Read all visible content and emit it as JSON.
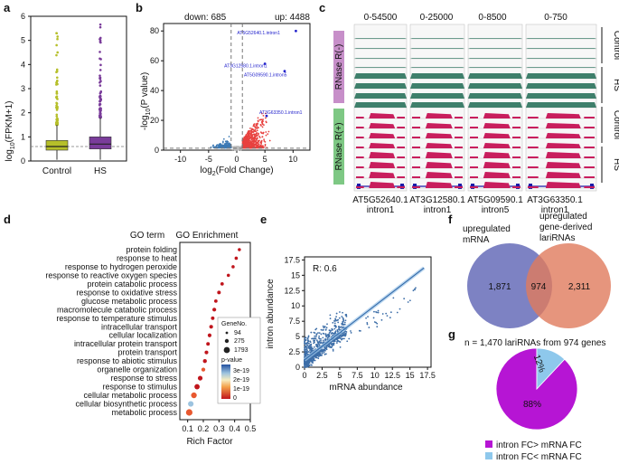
{
  "panels": {
    "a": {
      "label": "a",
      "ylabel_main": "log",
      "ylabel_sub": "10",
      "ylabel_rest": "(FPKM+1)",
      "yticks": [
        "0",
        "1",
        "2",
        "3",
        "4",
        "5",
        "6"
      ],
      "categories": [
        "Control",
        "HS"
      ]
    },
    "b": {
      "label": "b",
      "down_text": "down: 685",
      "up_text": "up: 4488",
      "ylabel": "-log10(P value)",
      "xlabel": "log2(Fold Change)",
      "xticks": [
        "-10",
        "-5",
        "0",
        "5",
        "10"
      ],
      "yticks": [
        "0",
        "20",
        "40",
        "60",
        "80"
      ],
      "annotations": [
        "AT5G52640.1.intron1",
        "AT3G12580.1.intron1",
        "AT5G09590.1.intron5",
        "AT3G63350.1.intron1"
      ]
    },
    "c": {
      "label": "c",
      "scales": [
        "0-54500",
        "0-25000",
        "0-8500",
        "0-750"
      ],
      "rnase_minus": "RNase R(-)",
      "rnase_plus": "RNase R(+)",
      "group_control": "Control",
      "group_hs": "HS",
      "genes": [
        "AT5G52640.1",
        "AT3G12580.1",
        "AT5G09590.1",
        "AT3G63350.1"
      ],
      "introns": [
        "intron1",
        "intron1",
        "intron5",
        "intron1"
      ]
    },
    "d": {
      "label": "d",
      "title_left": "GO term",
      "title_right": "GO Enrichment",
      "terms": [
        "protein folding",
        "response to heat",
        "response to hydrogen peroxide",
        "response to reactive oxygen species",
        "protein catabolic process",
        "response to oxidative stress",
        "glucose metabolic process",
        "macromolecule catabolic process",
        "response to temperature stimulus",
        "intracellular transport",
        "cellular localization",
        "intracellular protein transport",
        "protein transport",
        "response to abiotic stimulus",
        "organelle organization",
        "response to stress",
        "response to stimulus",
        "cellular metabolic process",
        "cellular biosynthetic process",
        "metabolic process"
      ],
      "xticks": [
        "0.1",
        "0.2",
        "0.3",
        "0.4",
        "0.5"
      ],
      "xlabel": "Rich Factor",
      "legend_geneno_title": "GeneNo.",
      "legend_geneno": [
        "94",
        "275",
        "1793"
      ],
      "legend_pvalue_title": "p-value",
      "legend_pvalue_ticks": [
        "3e-19",
        "2e-19",
        "1e-19",
        "0"
      ]
    },
    "e": {
      "label": "e",
      "r_text": "R: 0.6",
      "ylabel": "intron abundance",
      "xlabel": "mRNA abundance",
      "ticks": [
        "0",
        "2.5",
        "5",
        "7.5",
        "10",
        "12.5",
        "15",
        "17.5"
      ]
    },
    "f": {
      "label": "f",
      "left_title": "upregulated mRNA",
      "right_title": "upregulated gene-derived lariRNAs",
      "left_only": "1,871",
      "overlap": "974",
      "right_only": "2,311"
    },
    "g": {
      "label": "g",
      "title": "n = 1,470 lariRNAs from 974 genes",
      "big_label": "88%",
      "small_label": "12%",
      "legend1": "intron FC> mRNA FC",
      "legend2": "intron FC< mRNA FC"
    }
  },
  "chart_data": [
    {
      "type": "box",
      "title": "a",
      "categories": [
        "Control",
        "HS"
      ],
      "medians": [
        0.6,
        0.7
      ],
      "q1": [
        0.45,
        0.5
      ],
      "q3": [
        0.85,
        1.0
      ],
      "whisker_high": [
        1.5,
        1.8
      ],
      "whisker_low": [
        0.05,
        0.05
      ],
      "outlier_max": [
        5.7,
        5.9
      ],
      "reference_line": 0.6,
      "ylim": [
        0,
        6
      ],
      "colors": [
        "#b6bf2a",
        "#7a3c9a"
      ]
    },
    {
      "type": "scatter",
      "title": "b volcano",
      "xlabel": "log2(Fold Change)",
      "ylabel": "-log10(P value)",
      "xlim": [
        -13,
        13
      ],
      "ylim": [
        0,
        85
      ],
      "down_count": 685,
      "up_count": 4488,
      "labeled_points": [
        {
          "name": "AT5G52640.1.intron1",
          "x": 10.5,
          "y": 80
        },
        {
          "name": "AT3G12580.1.intron1",
          "x": 5.0,
          "y": 58
        },
        {
          "name": "AT5G09590.1.intron5",
          "x": 8.5,
          "y": 53
        },
        {
          "name": "AT3G63350.1.intron1",
          "x": 5.3,
          "y": 23
        }
      ],
      "colors": {
        "down": "#3d7ab5",
        "up": "#e8413f",
        "ns": "#bbbbbb"
      }
    },
    {
      "type": "scatter",
      "title": "d GO enrichment",
      "xlabel": "Rich Factor",
      "xlim": [
        0.05,
        0.5
      ],
      "terms": [
        "protein folding",
        "response to heat",
        "response to hydrogen peroxide",
        "response to reactive oxygen species",
        "protein catabolic process",
        "response to oxidative stress",
        "glucose metabolic process",
        "macromolecule catabolic process",
        "response to temperature stimulus",
        "intracellular transport",
        "cellular localization",
        "intracellular protein transport",
        "protein transport",
        "response to abiotic stimulus",
        "organelle organization",
        "response to stress",
        "response to stimulus",
        "cellular metabolic process",
        "cellular biosynthetic process",
        "metabolic process"
      ],
      "rich_factor": [
        0.43,
        0.41,
        0.39,
        0.36,
        0.32,
        0.3,
        0.28,
        0.27,
        0.26,
        0.25,
        0.24,
        0.23,
        0.22,
        0.21,
        0.2,
        0.18,
        0.16,
        0.14,
        0.12,
        0.11
      ],
      "gene_no": [
        94,
        120,
        100,
        110,
        150,
        200,
        140,
        260,
        180,
        230,
        240,
        200,
        220,
        300,
        280,
        600,
        900,
        1200,
        1100,
        1793
      ],
      "p_value": [
        2e-20,
        1e-20,
        1e-20,
        1e-20,
        5e-20,
        5e-20,
        3e-20,
        4e-20,
        2e-20,
        6e-20,
        6e-20,
        8e-20,
        7e-20,
        9e-20,
        1e-19,
        5e-20,
        7e-20,
        1e-19,
        2.5e-19,
        1e-19
      ]
    },
    {
      "type": "scatter",
      "title": "e",
      "xlabel": "mRNA abundance",
      "ylabel": "intron abundance",
      "r": 0.6,
      "xlim": [
        0,
        18
      ],
      "ylim": [
        0,
        18
      ],
      "fit_line": {
        "x0": 0,
        "y0": 1.2,
        "x1": 17,
        "y1": 16.2
      },
      "color": "#3d6ea8"
    },
    {
      "type": "venn",
      "title": "f",
      "sets": [
        "upregulated mRNA",
        "upregulated gene-derived lariRNAs"
      ],
      "left_only": 1871,
      "overlap": 974,
      "right_only": 2311
    },
    {
      "type": "pie",
      "title": "g",
      "labels": [
        "intron FC> mRNA FC",
        "intron FC< mRNA FC"
      ],
      "values": [
        88,
        12
      ],
      "colors": [
        "#b615d4",
        "#8ec8ec"
      ]
    }
  ]
}
